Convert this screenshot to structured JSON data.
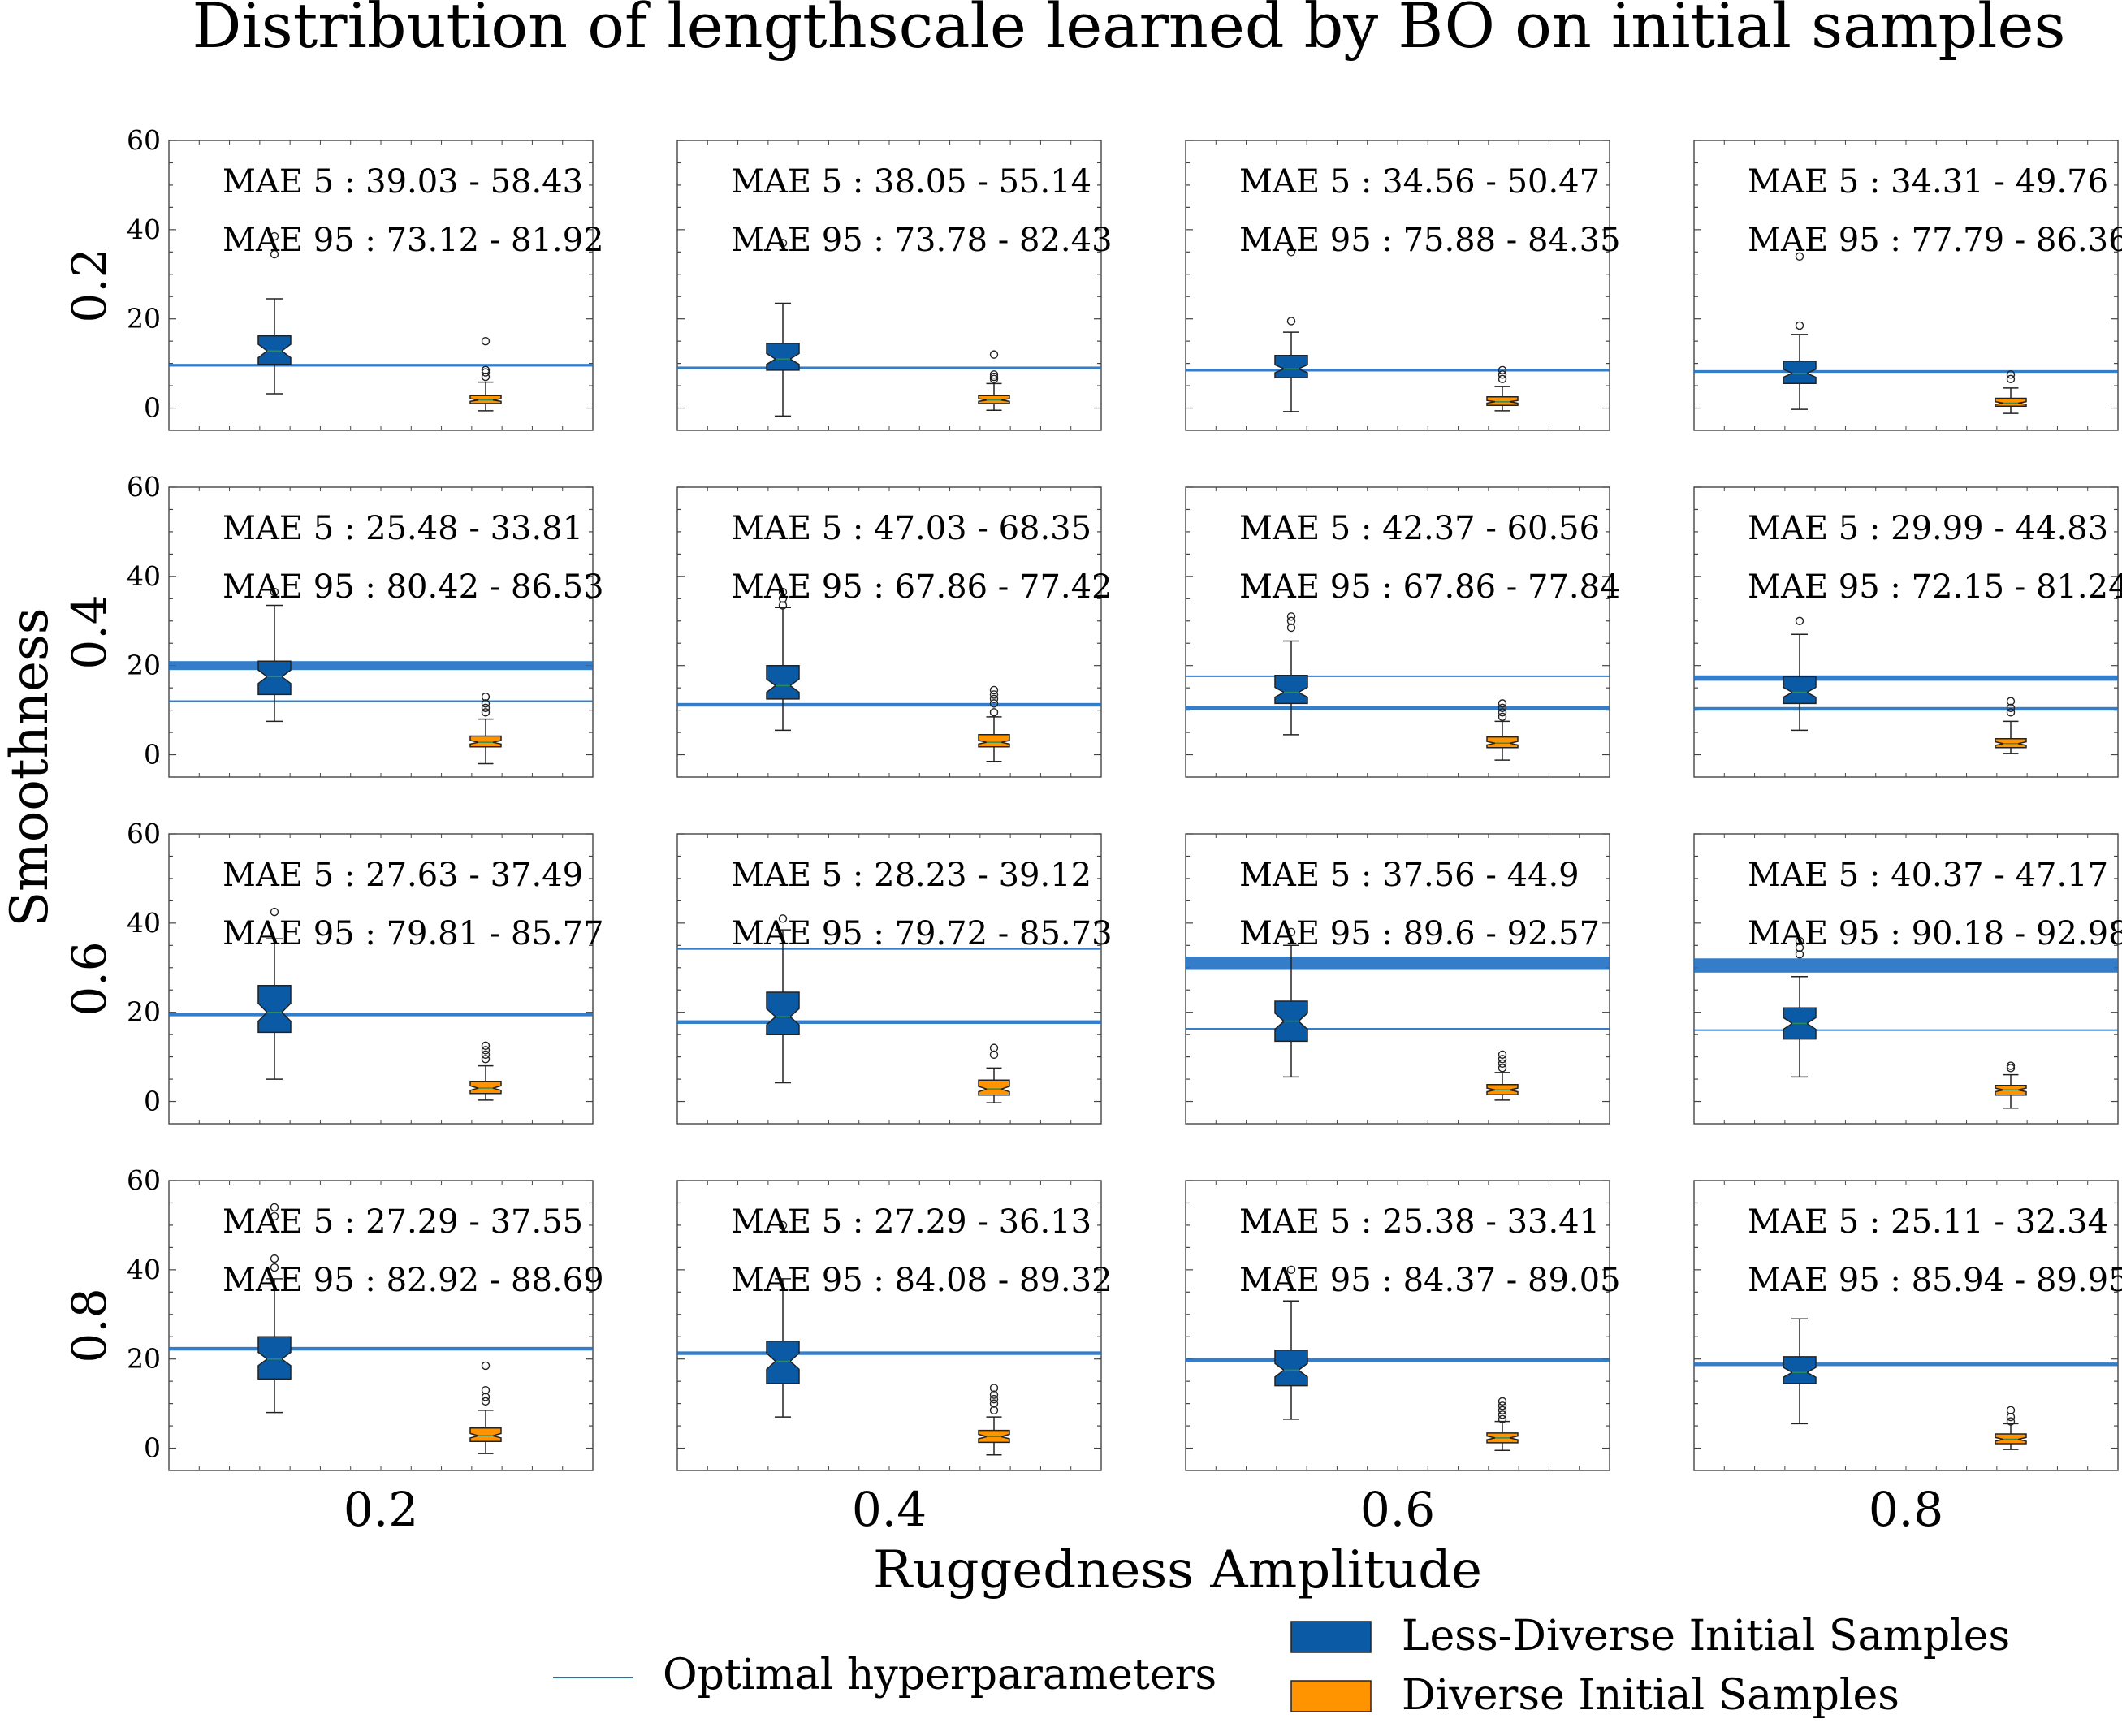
{
  "chart_data": {
    "type": "box",
    "title": "Distribution of lengthscale learned by BO on initial samples",
    "xlabel": "Ruggedness Amplitude",
    "ylabel": "Smoothness",
    "col_labels": [
      "0.2",
      "0.4",
      "0.6",
      "0.8"
    ],
    "row_labels": [
      "0.2",
      "0.4",
      "0.6",
      "0.8"
    ],
    "ylim": [
      -5,
      60
    ],
    "yticks": [
      "0",
      "20",
      "40",
      "60"
    ],
    "colors": {
      "less_diverse": "#0b5aa5",
      "diverse": "#ff9400",
      "optimal_line": "#1f6fc2"
    },
    "legend": {
      "optimal": "Optimal hyperparameters",
      "less_diverse": "Less-Diverse Initial Samples",
      "diverse": "Diverse Initial Samples"
    },
    "panels": [
      {
        "row": "0.2",
        "col": "0.2",
        "mae5": "MAE 5 : 39.03 - 58.43",
        "mae95": "MAE 95 : 73.12 - 81.92",
        "optimal": [
          {
            "y": 9.6,
            "spread": 0.3
          }
        ],
        "less_diverse": {
          "whislo": 3.2,
          "q1": 9.8,
          "med": 12.8,
          "q3": 16.2,
          "whishi": 24.5,
          "notch": [
            11.3,
            14.3
          ],
          "fliers": [
            34.5,
            38.5
          ]
        },
        "diverse": {
          "whislo": -0.6,
          "q1": 1.0,
          "med": 1.8,
          "q3": 2.8,
          "whishi": 5.8,
          "notch": [
            1.5,
            2.1
          ],
          "fliers": [
            7.0,
            8.0,
            8.5,
            15.0
          ]
        }
      },
      {
        "row": "0.2",
        "col": "0.4",
        "mae5": "MAE 5 : 38.05 - 55.14",
        "mae95": "MAE 95 : 73.78 - 82.43",
        "optimal": [
          {
            "y": 9.0,
            "spread": 0.3
          }
        ],
        "less_diverse": {
          "whislo": -1.8,
          "q1": 8.5,
          "med": 11.0,
          "q3": 14.5,
          "whishi": 23.5,
          "notch": [
            9.8,
            12.2
          ],
          "fliers": [
            37.0
          ]
        },
        "diverse": {
          "whislo": -0.5,
          "q1": 1.0,
          "med": 1.8,
          "q3": 2.8,
          "whishi": 5.5,
          "notch": [
            1.5,
            2.1
          ],
          "fliers": [
            6.5,
            7.0,
            7.5,
            12.0
          ]
        }
      },
      {
        "row": "0.2",
        "col": "0.6",
        "mae5": "MAE 5 : 34.56 - 50.47",
        "mae95": "MAE 95 : 75.88 - 84.35",
        "optimal": [
          {
            "y": 8.5,
            "spread": 0.3
          }
        ],
        "less_diverse": {
          "whislo": -0.8,
          "q1": 6.8,
          "med": 8.8,
          "q3": 11.8,
          "whishi": 17.0,
          "notch": [
            7.9,
            9.7
          ],
          "fliers": [
            19.5,
            35.0
          ]
        },
        "diverse": {
          "whislo": -0.6,
          "q1": 0.6,
          "med": 1.4,
          "q3": 2.5,
          "whishi": 4.8,
          "notch": [
            1.1,
            1.7
          ],
          "fliers": [
            6.5,
            7.5,
            8.5
          ]
        }
      },
      {
        "row": "0.2",
        "col": "0.8",
        "mae5": "MAE 5 : 34.31 - 49.76",
        "mae95": "MAE 95 : 77.79 - 86.36",
        "optimal": [
          {
            "y": 8.2,
            "spread": 0.3
          }
        ],
        "less_diverse": {
          "whislo": -0.3,
          "q1": 5.5,
          "med": 7.8,
          "q3": 10.5,
          "whishi": 16.5,
          "notch": [
            6.9,
            8.7
          ],
          "fliers": [
            18.5,
            34.0
          ]
        },
        "diverse": {
          "whislo": -1.2,
          "q1": 0.4,
          "med": 1.1,
          "q3": 2.2,
          "whishi": 4.5,
          "notch": [
            0.8,
            1.4
          ],
          "fliers": [
            6.5,
            7.5
          ]
        }
      },
      {
        "row": "0.4",
        "col": "0.2",
        "mae5": "MAE 5 : 25.48 - 33.81",
        "mae95": "MAE 95 : 80.42 - 86.53",
        "optimal": [
          {
            "y": 12.0,
            "spread": 0.2
          },
          {
            "y": 20.0,
            "spread": 1.0
          }
        ],
        "less_diverse": {
          "whislo": 7.5,
          "q1": 13.5,
          "med": 17.5,
          "q3": 21.0,
          "whishi": 33.5,
          "notch": [
            16.0,
            19.0
          ],
          "fliers": [
            36.5
          ]
        },
        "diverse": {
          "whislo": -2.0,
          "q1": 1.8,
          "med": 2.8,
          "q3": 4.2,
          "whishi": 8.0,
          "notch": [
            2.4,
            3.2
          ],
          "fliers": [
            9.5,
            10.5,
            11.5,
            13.0
          ]
        }
      },
      {
        "row": "0.4",
        "col": "0.4",
        "mae5": "MAE 5 : 47.03 - 68.35",
        "mae95": "MAE 95 : 67.86 - 77.42",
        "optimal": [
          {
            "y": 11.2,
            "spread": 0.4
          }
        ],
        "less_diverse": {
          "whislo": 5.5,
          "q1": 12.5,
          "med": 15.5,
          "q3": 20.0,
          "whishi": 33.0,
          "notch": [
            14.0,
            17.0
          ],
          "fliers": [
            33.5,
            35.0,
            36.5
          ]
        },
        "diverse": {
          "whislo": -1.5,
          "q1": 1.8,
          "med": 2.8,
          "q3": 4.5,
          "whishi": 8.5,
          "notch": [
            2.4,
            3.2
          ],
          "fliers": [
            9.5,
            11.5,
            12.5,
            13.5,
            14.5
          ]
        }
      },
      {
        "row": "0.4",
        "col": "0.6",
        "mae5": "MAE 5 : 42.37 - 60.56",
        "mae95": "MAE 95 : 67.86 - 77.84",
        "optimal": [
          {
            "y": 10.5,
            "spread": 0.5
          },
          {
            "y": 17.6,
            "spread": 0.1
          }
        ],
        "less_diverse": {
          "whislo": 4.5,
          "q1": 11.5,
          "med": 14.0,
          "q3": 17.8,
          "whishi": 25.5,
          "notch": [
            12.9,
            15.1
          ],
          "fliers": [
            28.5,
            30.0,
            31.0
          ]
        },
        "diverse": {
          "whislo": -1.2,
          "q1": 1.6,
          "med": 2.6,
          "q3": 4.0,
          "whishi": 7.5,
          "notch": [
            2.2,
            3.0
          ],
          "fliers": [
            8.5,
            9.5,
            10.5,
            11.5
          ]
        }
      },
      {
        "row": "0.4",
        "col": "0.8",
        "mae5": "MAE 5 : 29.99 - 44.83",
        "mae95": "MAE 95 : 72.15 - 81.24",
        "optimal": [
          {
            "y": 10.3,
            "spread": 0.4
          },
          {
            "y": 17.2,
            "spread": 0.6
          }
        ],
        "less_diverse": {
          "whislo": 5.5,
          "q1": 11.5,
          "med": 14.0,
          "q3": 17.5,
          "whishi": 27.0,
          "notch": [
            12.9,
            15.1
          ],
          "fliers": [
            30.0
          ]
        },
        "diverse": {
          "whislo": 0.3,
          "q1": 1.6,
          "med": 2.5,
          "q3": 3.6,
          "whishi": 7.5,
          "notch": [
            2.1,
            2.9
          ],
          "fliers": [
            9.5,
            10.5,
            12.0
          ]
        }
      },
      {
        "row": "0.6",
        "col": "0.2",
        "mae5": "MAE 5 : 27.63 - 37.49",
        "mae95": "MAE 95 : 79.81 - 85.77",
        "optimal": [
          {
            "y": 19.5,
            "spread": 0.4
          }
        ],
        "less_diverse": {
          "whislo": 5.0,
          "q1": 15.5,
          "med": 20.0,
          "q3": 26.0,
          "whishi": 36.5,
          "notch": [
            18.0,
            22.0
          ],
          "fliers": [
            42.5
          ]
        },
        "diverse": {
          "whislo": 0.3,
          "q1": 1.8,
          "med": 3.0,
          "q3": 4.5,
          "whishi": 8.0,
          "notch": [
            2.5,
            3.5
          ],
          "fliers": [
            9.5,
            10.5,
            11.5,
            12.5
          ]
        }
      },
      {
        "row": "0.6",
        "col": "0.4",
        "mae5": "MAE 5 : 28.23 - 39.12",
        "mae95": "MAE 95 : 79.72 - 85.73",
        "optimal": [
          {
            "y": 17.8,
            "spread": 0.4
          },
          {
            "y": 34.2,
            "spread": 0.1
          }
        ],
        "less_diverse": {
          "whislo": 4.2,
          "q1": 15.0,
          "med": 19.0,
          "q3": 24.5,
          "whishi": 38.5,
          "notch": [
            17.2,
            20.8
          ],
          "fliers": [
            41.0
          ]
        },
        "diverse": {
          "whislo": -0.3,
          "q1": 1.4,
          "med": 2.8,
          "q3": 4.8,
          "whishi": 7.5,
          "notch": [
            2.2,
            3.4
          ],
          "fliers": [
            10.5,
            12.0
          ]
        }
      },
      {
        "row": "0.6",
        "col": "0.6",
        "mae5": "MAE 5 : 37.56 - 44.9",
        "mae95": "MAE 95 : 89.6 - 92.57",
        "optimal": [
          {
            "y": 16.3,
            "spread": 0.1
          },
          {
            "y": 31.0,
            "spread": 1.5
          }
        ],
        "less_diverse": {
          "whislo": 5.5,
          "q1": 13.5,
          "med": 18.0,
          "q3": 22.5,
          "whishi": 35.0,
          "notch": [
            16.2,
            19.8
          ],
          "fliers": [
            38.0
          ]
        },
        "diverse": {
          "whislo": 0.3,
          "q1": 1.5,
          "med": 2.6,
          "q3": 3.8,
          "whishi": 6.5,
          "notch": [
            2.2,
            3.0
          ],
          "fliers": [
            7.5,
            8.5,
            9.5,
            10.5
          ]
        }
      },
      {
        "row": "0.6",
        "col": "0.8",
        "mae5": "MAE 5 : 40.37 - 47.17",
        "mae95": "MAE 95 : 90.18 - 92.98",
        "optimal": [
          {
            "y": 16.0,
            "spread": 0.1
          },
          {
            "y": 30.5,
            "spread": 1.6
          }
        ],
        "less_diverse": {
          "whislo": 5.5,
          "q1": 14.0,
          "med": 17.5,
          "q3": 21.0,
          "whishi": 28.0,
          "notch": [
            16.2,
            18.8
          ],
          "fliers": [
            33.0,
            34.5,
            36.0
          ]
        },
        "diverse": {
          "whislo": -1.5,
          "q1": 1.4,
          "med": 2.6,
          "q3": 3.6,
          "whishi": 6.0,
          "notch": [
            2.2,
            3.0
          ],
          "fliers": [
            7.5,
            8.0
          ]
        }
      },
      {
        "row": "0.8",
        "col": "0.2",
        "mae5": "MAE 5 : 27.29 - 37.55",
        "mae95": "MAE 95 : 82.92 - 88.69",
        "optimal": [
          {
            "y": 22.3,
            "spread": 0.4
          }
        ],
        "less_diverse": {
          "whislo": 8.0,
          "q1": 15.5,
          "med": 20.0,
          "q3": 25.0,
          "whishi": 38.0,
          "notch": [
            18.5,
            21.5
          ],
          "fliers": [
            40.5,
            42.5,
            52.0,
            54.0
          ]
        },
        "diverse": {
          "whislo": -1.2,
          "q1": 1.5,
          "med": 2.8,
          "q3": 4.5,
          "whishi": 8.5,
          "notch": [
            2.3,
            3.3
          ],
          "fliers": [
            10.5,
            11.5,
            13.0,
            18.5
          ]
        }
      },
      {
        "row": "0.8",
        "col": "0.4",
        "mae5": "MAE 5 : 27.29 - 36.13",
        "mae95": "MAE 95 : 84.08 - 89.32",
        "optimal": [
          {
            "y": 21.3,
            "spread": 0.4
          }
        ],
        "less_diverse": {
          "whislo": 7.0,
          "q1": 14.5,
          "med": 19.5,
          "q3": 24.0,
          "whishi": 38.0,
          "notch": [
            17.7,
            21.3
          ],
          "fliers": [
            50.0
          ]
        },
        "diverse": {
          "whislo": -1.5,
          "q1": 1.3,
          "med": 2.6,
          "q3": 4.0,
          "whishi": 7.0,
          "notch": [
            2.1,
            3.1
          ],
          "fliers": [
            8.5,
            10.0,
            11.0,
            12.0,
            13.5
          ]
        }
      },
      {
        "row": "0.8",
        "col": "0.6",
        "mae5": "MAE 5 : 25.38 - 33.41",
        "mae95": "MAE 95 : 84.37 - 89.05",
        "optimal": [
          {
            "y": 19.8,
            "spread": 0.4
          }
        ],
        "less_diverse": {
          "whislo": 6.5,
          "q1": 14.0,
          "med": 17.5,
          "q3": 22.0,
          "whishi": 33.0,
          "notch": [
            16.0,
            19.0
          ],
          "fliers": [
            40.0
          ]
        },
        "diverse": {
          "whislo": -0.5,
          "q1": 1.2,
          "med": 2.3,
          "q3": 3.4,
          "whishi": 6.0,
          "notch": [
            1.9,
            2.7
          ],
          "fliers": [
            6.5,
            7.5,
            8.5,
            9.5,
            10.5
          ]
        }
      },
      {
        "row": "0.8",
        "col": "0.8",
        "mae5": "MAE 5 : 25.11 - 32.34",
        "mae95": "MAE 95 : 85.94 - 89.95",
        "optimal": [
          {
            "y": 18.8,
            "spread": 0.4
          }
        ],
        "less_diverse": {
          "whislo": 5.5,
          "q1": 14.5,
          "med": 17.0,
          "q3": 20.5,
          "whishi": 29.0,
          "notch": [
            15.9,
            18.1
          ],
          "fliers": []
        },
        "diverse": {
          "whislo": -0.3,
          "q1": 1.0,
          "med": 2.0,
          "q3": 3.2,
          "whishi": 5.5,
          "notch": [
            1.6,
            2.4
          ],
          "fliers": [
            6.0,
            7.0,
            8.5
          ]
        }
      }
    ]
  }
}
